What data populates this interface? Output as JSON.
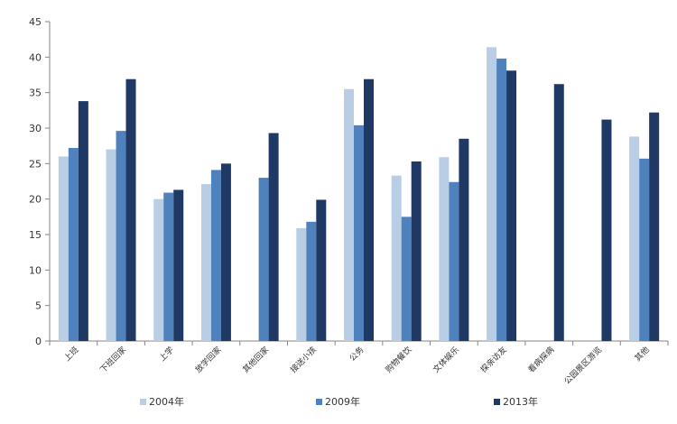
{
  "chart_data": {
    "type": "bar",
    "categories": [
      "上班",
      "下班回家",
      "上学",
      "放学回家",
      "其他回家",
      "接送小孩",
      "公务",
      "购物餐饮",
      "文体娱乐",
      "探亲访友",
      "看病探病",
      "公园景区游览",
      "其他"
    ],
    "series": [
      {
        "name": "2004年",
        "color": "#b9cde5",
        "values": [
          26.0,
          27.0,
          20.0,
          22.1,
          null,
          15.9,
          35.5,
          23.3,
          25.9,
          41.4,
          null,
          null,
          28.8
        ]
      },
      {
        "name": "2009年",
        "color": "#4f81bd",
        "values": [
          27.2,
          29.6,
          20.9,
          24.1,
          23.0,
          16.8,
          30.4,
          17.5,
          22.4,
          39.8,
          null,
          null,
          25.7
        ]
      },
      {
        "name": "2013年",
        "color": "#1f3864",
        "values": [
          33.8,
          36.9,
          21.3,
          25.0,
          29.3,
          19.9,
          36.9,
          25.3,
          28.5,
          38.1,
          36.2,
          31.2,
          32.2
        ]
      }
    ],
    "ylim": [
      0,
      45
    ],
    "yticks": [
      0,
      5,
      10,
      15,
      20,
      25,
      30,
      35,
      40,
      45
    ],
    "grid": false,
    "legend_position": "bottom"
  }
}
